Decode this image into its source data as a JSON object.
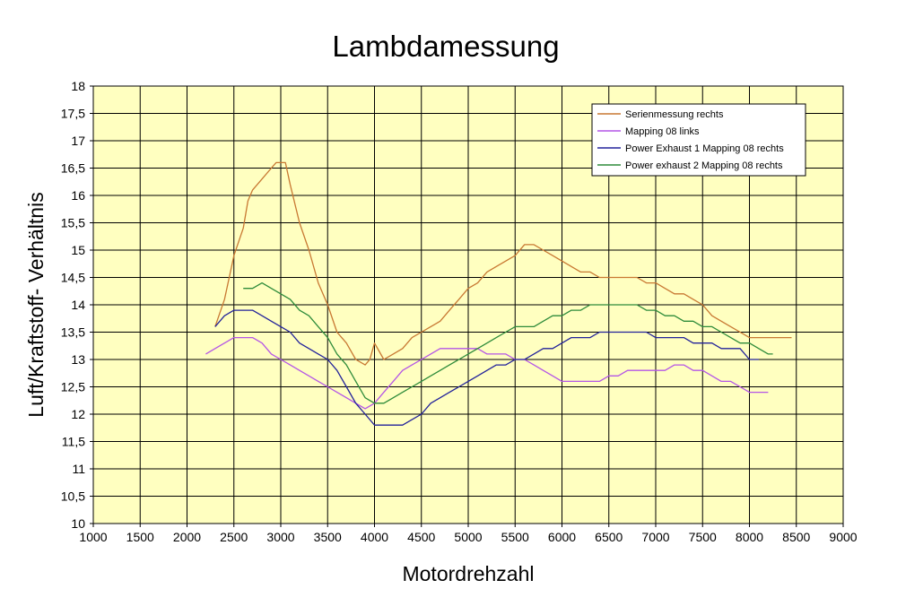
{
  "chart_data": {
    "type": "line",
    "title": "Lambdamessung",
    "xlabel": "Motordrehzahl",
    "ylabel": "Luft/Kraftstoff- Verhältnis",
    "xlim": [
      1000,
      9000
    ],
    "ylim": [
      10,
      18
    ],
    "x_ticks": [
      "1000",
      "1500",
      "2000",
      "2500",
      "3000",
      "3500",
      "4000",
      "4500",
      "5000",
      "5500",
      "6000",
      "6500",
      "7000",
      "7500",
      "8000",
      "8500",
      "9000"
    ],
    "y_ticks": [
      "10",
      "10,5",
      "11",
      "11,5",
      "12",
      "12,5",
      "13",
      "13,5",
      "14",
      "14,5",
      "15",
      "15,5",
      "16",
      "16,5",
      "17",
      "17,5",
      "18"
    ],
    "grid": true,
    "legend_position": "top-right",
    "plot_background": "#FFFFC0",
    "series": [
      {
        "name": "Serienmessung rechts",
        "color": "#C87832",
        "points": [
          [
            2300,
            13.6
          ],
          [
            2400,
            14.1
          ],
          [
            2500,
            14.9
          ],
          [
            2600,
            15.4
          ],
          [
            2650,
            15.9
          ],
          [
            2700,
            16.1
          ],
          [
            2800,
            16.3
          ],
          [
            2900,
            16.5
          ],
          [
            2950,
            16.6
          ],
          [
            3050,
            16.6
          ],
          [
            3100,
            16.2
          ],
          [
            3200,
            15.5
          ],
          [
            3300,
            15.0
          ],
          [
            3400,
            14.4
          ],
          [
            3500,
            14.0
          ],
          [
            3600,
            13.5
          ],
          [
            3700,
            13.3
          ],
          [
            3800,
            13.0
          ],
          [
            3900,
            12.9
          ],
          [
            3950,
            13.0
          ],
          [
            4000,
            13.3
          ],
          [
            4100,
            13.0
          ],
          [
            4200,
            13.1
          ],
          [
            4300,
            13.2
          ],
          [
            4400,
            13.4
          ],
          [
            4500,
            13.5
          ],
          [
            4600,
            13.6
          ],
          [
            4700,
            13.7
          ],
          [
            4800,
            13.9
          ],
          [
            4900,
            14.1
          ],
          [
            5000,
            14.3
          ],
          [
            5100,
            14.4
          ],
          [
            5200,
            14.6
          ],
          [
            5300,
            14.7
          ],
          [
            5400,
            14.8
          ],
          [
            5500,
            14.9
          ],
          [
            5600,
            15.1
          ],
          [
            5700,
            15.1
          ],
          [
            5800,
            15.0
          ],
          [
            5900,
            14.9
          ],
          [
            6000,
            14.8
          ],
          [
            6100,
            14.7
          ],
          [
            6200,
            14.6
          ],
          [
            6300,
            14.6
          ],
          [
            6400,
            14.5
          ],
          [
            6500,
            14.5
          ],
          [
            6600,
            14.5
          ],
          [
            6700,
            14.5
          ],
          [
            6800,
            14.5
          ],
          [
            6900,
            14.4
          ],
          [
            7000,
            14.4
          ],
          [
            7100,
            14.3
          ],
          [
            7200,
            14.2
          ],
          [
            7300,
            14.2
          ],
          [
            7400,
            14.1
          ],
          [
            7500,
            14.0
          ],
          [
            7600,
            13.8
          ],
          [
            7700,
            13.7
          ],
          [
            7800,
            13.6
          ],
          [
            7900,
            13.5
          ],
          [
            8000,
            13.4
          ],
          [
            8100,
            13.4
          ],
          [
            8200,
            13.4
          ],
          [
            8300,
            13.4
          ],
          [
            8400,
            13.4
          ],
          [
            8450,
            13.4
          ]
        ]
      },
      {
        "name": "Mapping 08 links",
        "color": "#B455E6",
        "points": [
          [
            2200,
            13.1
          ],
          [
            2300,
            13.2
          ],
          [
            2400,
            13.3
          ],
          [
            2500,
            13.4
          ],
          [
            2600,
            13.4
          ],
          [
            2700,
            13.4
          ],
          [
            2800,
            13.3
          ],
          [
            2900,
            13.1
          ],
          [
            3000,
            13.0
          ],
          [
            3100,
            12.9
          ],
          [
            3200,
            12.8
          ],
          [
            3300,
            12.7
          ],
          [
            3400,
            12.6
          ],
          [
            3500,
            12.5
          ],
          [
            3600,
            12.4
          ],
          [
            3700,
            12.3
          ],
          [
            3800,
            12.2
          ],
          [
            3900,
            12.1
          ],
          [
            4000,
            12.2
          ],
          [
            4100,
            12.4
          ],
          [
            4200,
            12.6
          ],
          [
            4300,
            12.8
          ],
          [
            4400,
            12.9
          ],
          [
            4500,
            13.0
          ],
          [
            4600,
            13.1
          ],
          [
            4700,
            13.2
          ],
          [
            4800,
            13.2
          ],
          [
            4900,
            13.2
          ],
          [
            5000,
            13.2
          ],
          [
            5100,
            13.2
          ],
          [
            5200,
            13.1
          ],
          [
            5300,
            13.1
          ],
          [
            5400,
            13.1
          ],
          [
            5500,
            13.0
          ],
          [
            5600,
            13.0
          ],
          [
            5700,
            12.9
          ],
          [
            5800,
            12.8
          ],
          [
            5900,
            12.7
          ],
          [
            6000,
            12.6
          ],
          [
            6100,
            12.6
          ],
          [
            6200,
            12.6
          ],
          [
            6300,
            12.6
          ],
          [
            6400,
            12.6
          ],
          [
            6500,
            12.7
          ],
          [
            6600,
            12.7
          ],
          [
            6700,
            12.8
          ],
          [
            6800,
            12.8
          ],
          [
            6900,
            12.8
          ],
          [
            7000,
            12.8
          ],
          [
            7100,
            12.8
          ],
          [
            7200,
            12.9
          ],
          [
            7300,
            12.9
          ],
          [
            7400,
            12.8
          ],
          [
            7500,
            12.8
          ],
          [
            7600,
            12.7
          ],
          [
            7700,
            12.6
          ],
          [
            7800,
            12.6
          ],
          [
            7900,
            12.5
          ],
          [
            8000,
            12.4
          ],
          [
            8100,
            12.4
          ],
          [
            8200,
            12.4
          ]
        ]
      },
      {
        "name": "Power Exhaust 1 Mapping 08 rechts",
        "color": "#22229A",
        "points": [
          [
            2300,
            13.6
          ],
          [
            2400,
            13.8
          ],
          [
            2500,
            13.9
          ],
          [
            2600,
            13.9
          ],
          [
            2700,
            13.9
          ],
          [
            2800,
            13.8
          ],
          [
            2900,
            13.7
          ],
          [
            3000,
            13.6
          ],
          [
            3100,
            13.5
          ],
          [
            3200,
            13.3
          ],
          [
            3300,
            13.2
          ],
          [
            3400,
            13.1
          ],
          [
            3500,
            13.0
          ],
          [
            3600,
            12.8
          ],
          [
            3700,
            12.5
          ],
          [
            3800,
            12.2
          ],
          [
            3900,
            12.0
          ],
          [
            4000,
            11.8
          ],
          [
            4100,
            11.8
          ],
          [
            4200,
            11.8
          ],
          [
            4300,
            11.8
          ],
          [
            4400,
            11.9
          ],
          [
            4500,
            12.0
          ],
          [
            4600,
            12.2
          ],
          [
            4700,
            12.3
          ],
          [
            4800,
            12.4
          ],
          [
            4900,
            12.5
          ],
          [
            5000,
            12.6
          ],
          [
            5100,
            12.7
          ],
          [
            5200,
            12.8
          ],
          [
            5300,
            12.9
          ],
          [
            5400,
            12.9
          ],
          [
            5500,
            13.0
          ],
          [
            5600,
            13.0
          ],
          [
            5700,
            13.1
          ],
          [
            5800,
            13.2
          ],
          [
            5900,
            13.2
          ],
          [
            6000,
            13.3
          ],
          [
            6100,
            13.4
          ],
          [
            6200,
            13.4
          ],
          [
            6300,
            13.4
          ],
          [
            6400,
            13.5
          ],
          [
            6500,
            13.5
          ],
          [
            6600,
            13.5
          ],
          [
            6700,
            13.5
          ],
          [
            6800,
            13.5
          ],
          [
            6900,
            13.5
          ],
          [
            7000,
            13.4
          ],
          [
            7100,
            13.4
          ],
          [
            7200,
            13.4
          ],
          [
            7300,
            13.4
          ],
          [
            7400,
            13.3
          ],
          [
            7500,
            13.3
          ],
          [
            7600,
            13.3
          ],
          [
            7700,
            13.2
          ],
          [
            7800,
            13.2
          ],
          [
            7900,
            13.2
          ],
          [
            8000,
            13.0
          ],
          [
            8100,
            13.0
          ]
        ]
      },
      {
        "name": "Power exhaust 2 Mapping 08 rechts",
        "color": "#2E8B3A",
        "points": [
          [
            2600,
            14.3
          ],
          [
            2700,
            14.3
          ],
          [
            2800,
            14.4
          ],
          [
            2900,
            14.3
          ],
          [
            3000,
            14.2
          ],
          [
            3100,
            14.1
          ],
          [
            3200,
            13.9
          ],
          [
            3300,
            13.8
          ],
          [
            3400,
            13.6
          ],
          [
            3500,
            13.4
          ],
          [
            3600,
            13.1
          ],
          [
            3700,
            12.9
          ],
          [
            3800,
            12.6
          ],
          [
            3900,
            12.3
          ],
          [
            4000,
            12.2
          ],
          [
            4100,
            12.2
          ],
          [
            4200,
            12.3
          ],
          [
            4300,
            12.4
          ],
          [
            4400,
            12.5
          ],
          [
            4500,
            12.6
          ],
          [
            4600,
            12.7
          ],
          [
            4700,
            12.8
          ],
          [
            4800,
            12.9
          ],
          [
            4900,
            13.0
          ],
          [
            5000,
            13.1
          ],
          [
            5100,
            13.2
          ],
          [
            5200,
            13.3
          ],
          [
            5300,
            13.4
          ],
          [
            5400,
            13.5
          ],
          [
            5500,
            13.6
          ],
          [
            5600,
            13.6
          ],
          [
            5700,
            13.6
          ],
          [
            5800,
            13.7
          ],
          [
            5900,
            13.8
          ],
          [
            6000,
            13.8
          ],
          [
            6100,
            13.9
          ],
          [
            6200,
            13.9
          ],
          [
            6300,
            14.0
          ],
          [
            6400,
            14.0
          ],
          [
            6500,
            14.0
          ],
          [
            6600,
            14.0
          ],
          [
            6700,
            14.0
          ],
          [
            6800,
            14.0
          ],
          [
            6900,
            13.9
          ],
          [
            7000,
            13.9
          ],
          [
            7100,
            13.8
          ],
          [
            7200,
            13.8
          ],
          [
            7300,
            13.7
          ],
          [
            7400,
            13.7
          ],
          [
            7500,
            13.6
          ],
          [
            7600,
            13.6
          ],
          [
            7700,
            13.5
          ],
          [
            7800,
            13.4
          ],
          [
            7900,
            13.3
          ],
          [
            8000,
            13.3
          ],
          [
            8100,
            13.2
          ],
          [
            8200,
            13.1
          ],
          [
            8250,
            13.1
          ]
        ]
      }
    ]
  }
}
